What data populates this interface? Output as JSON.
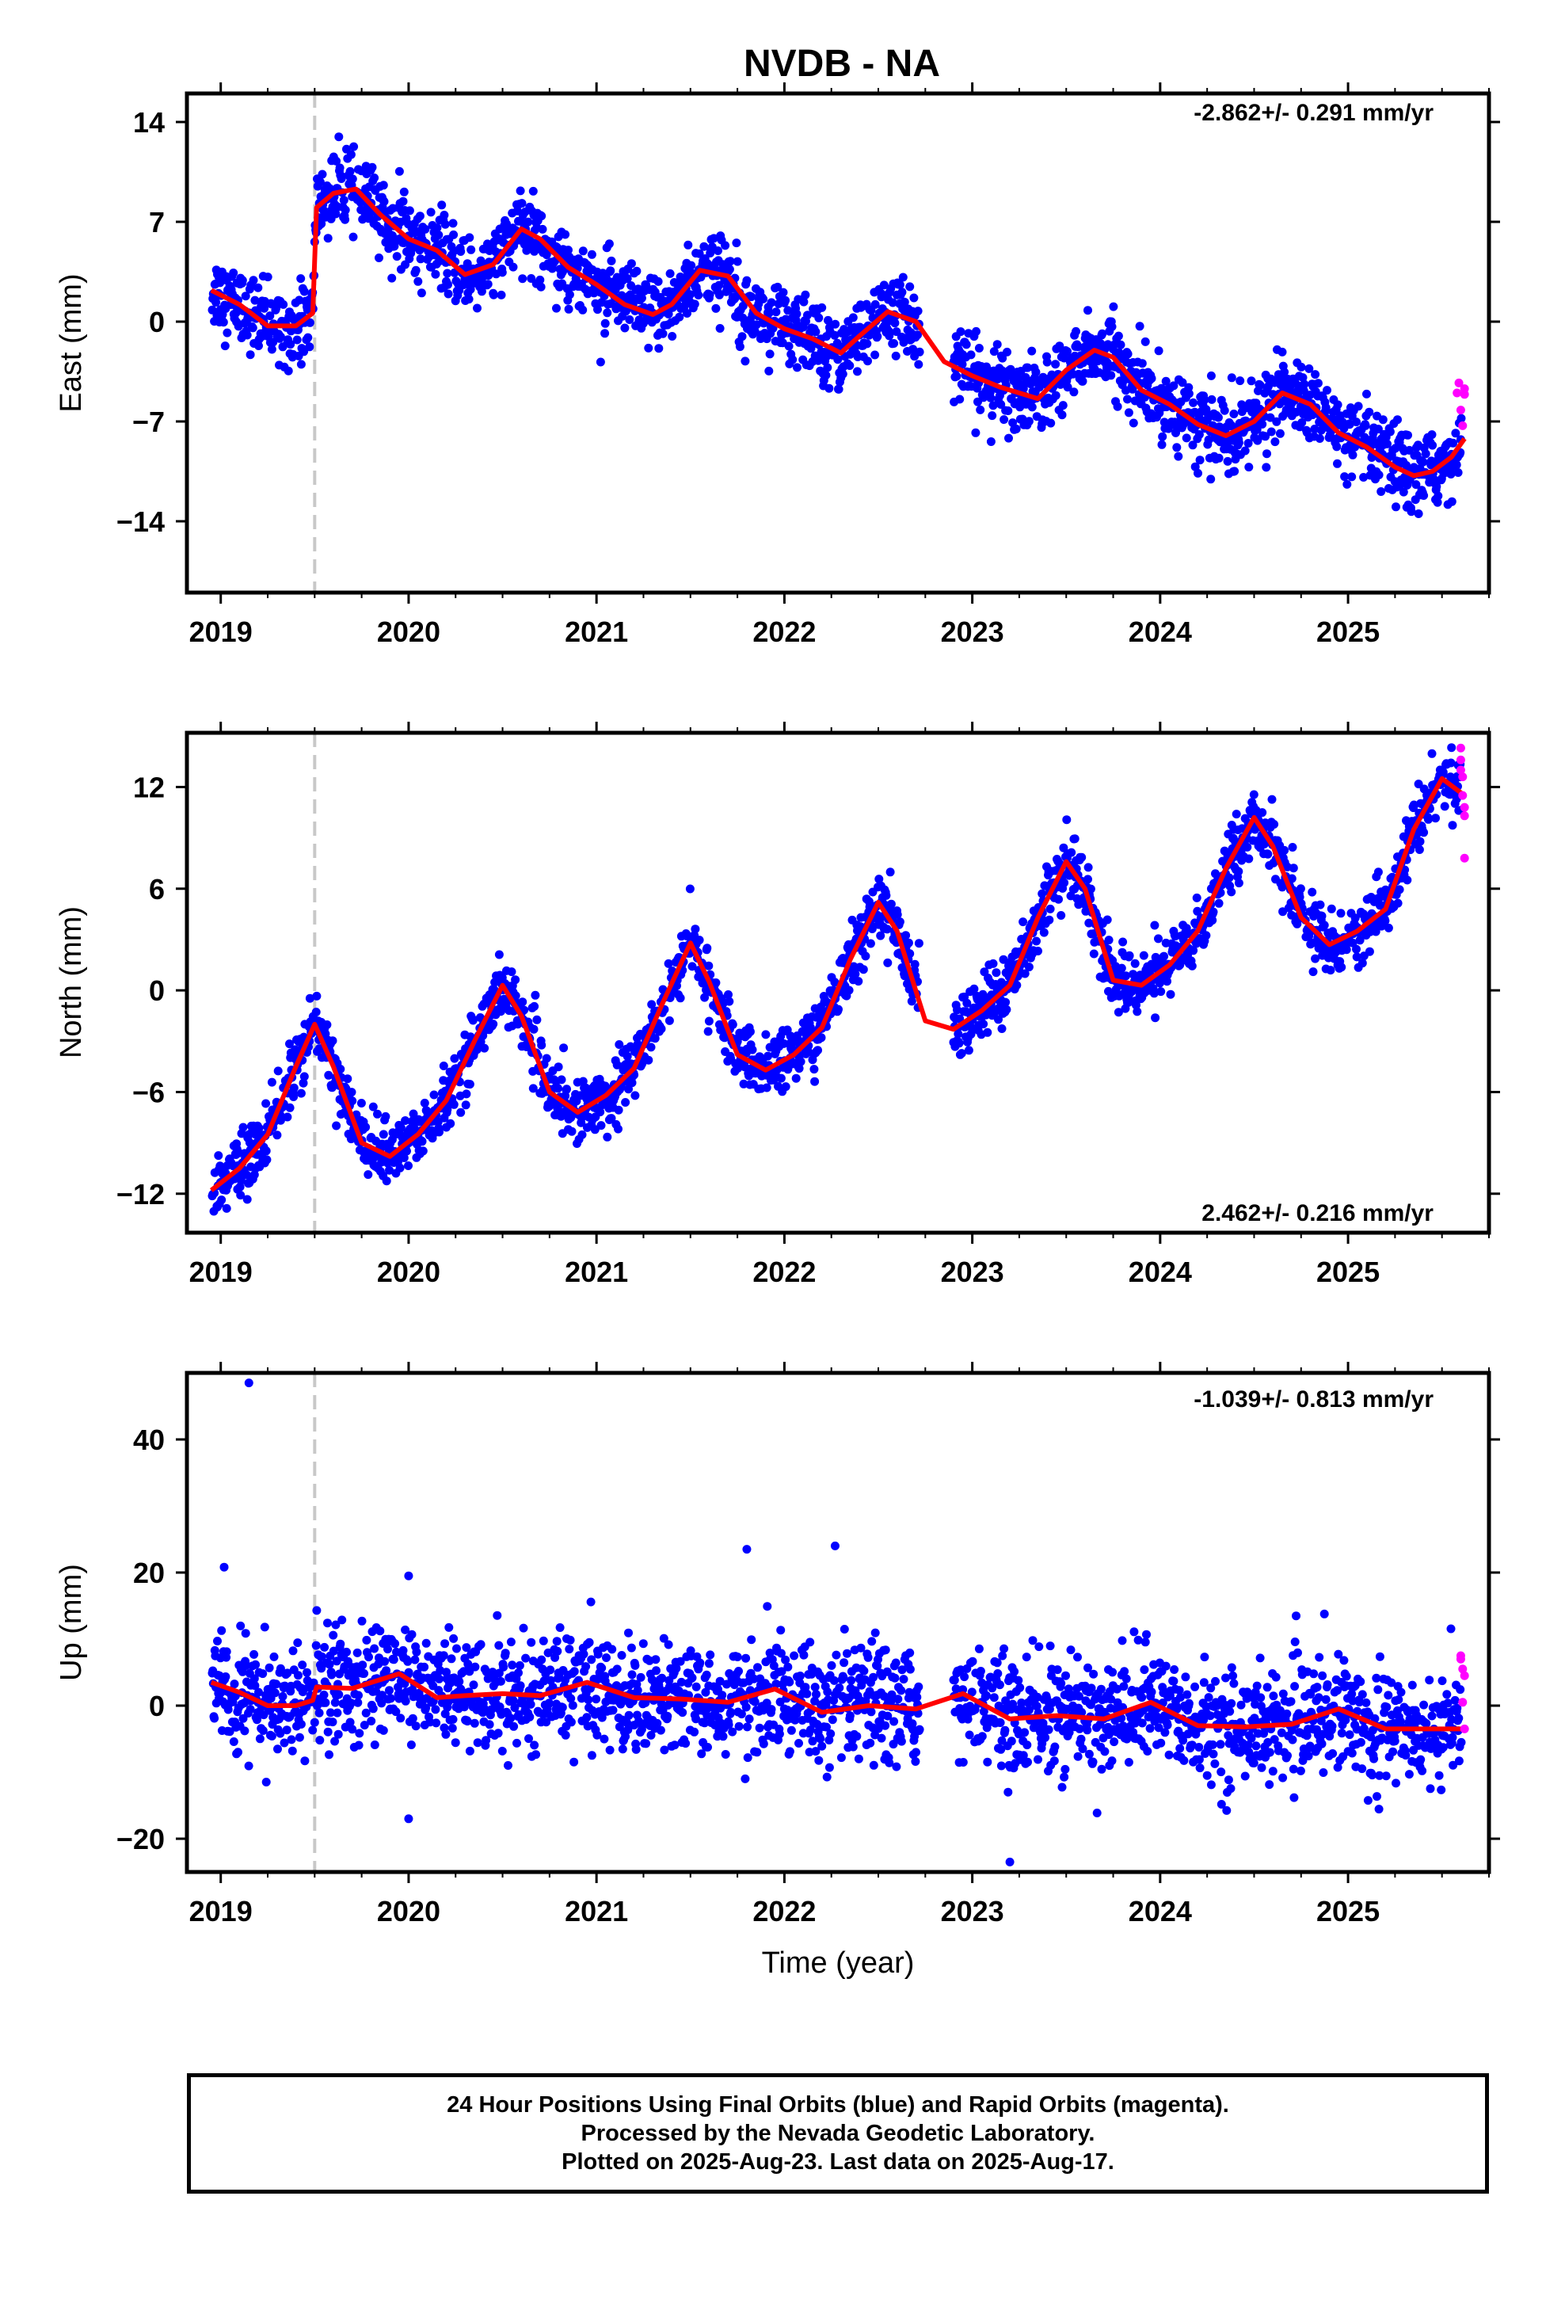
{
  "page_title": "NVDB - NA",
  "xlabel": "Time (year)",
  "caption": [
    "24 Hour Positions Using Final Orbits (blue) and Rapid Orbits (magenta).",
    "Processed by the Nevada Geodetic Laboratory.",
    "Plotted on 2025-Aug-23. Last data on 2025-Aug-17."
  ],
  "colors": {
    "final_orbits": "#0000ff",
    "rapid_orbits": "#ff00ff",
    "model_fit": "#ff0000",
    "event_line": "#c8c8c8"
  },
  "chart_data": [
    {
      "type": "scatter",
      "ylabel": "East (mm)",
      "rate_label": "-2.862+/- 0.291 mm/yr",
      "rate_position": "top-right",
      "xlim": [
        2018.82,
        2025.75
      ],
      "ylim": [
        -19,
        16
      ],
      "xticks": [
        2019,
        2020,
        2021,
        2022,
        2023,
        2024,
        2025
      ],
      "yticks": [
        14,
        7,
        0,
        -7,
        -14
      ],
      "event_line_x": 2019.5,
      "fit_x": [
        2018.95,
        2019.1,
        2019.25,
        2019.4,
        2019.49,
        2019.51,
        2019.6,
        2019.72,
        2019.85,
        2020.0,
        2020.15,
        2020.3,
        2020.45,
        2020.6,
        2020.7,
        2020.85,
        2021.0,
        2021.15,
        2021.3,
        2021.4,
        2021.55,
        2021.7,
        2021.85,
        2022.0,
        2022.15,
        2022.3,
        2022.4,
        2022.55,
        2022.7,
        2022.85,
        2023.0,
        2023.15,
        2023.35,
        2023.5,
        2023.65,
        2023.75,
        2023.9,
        2024.05,
        2024.2,
        2024.35,
        2024.5,
        2024.65,
        2024.8,
        2024.95,
        2025.1,
        2025.25,
        2025.35,
        2025.45,
        2025.55,
        2025.62
      ],
      "fit_y": [
        2.2,
        1.2,
        -0.3,
        -0.3,
        0.6,
        8.0,
        9.0,
        9.3,
        7.5,
        5.8,
        5.0,
        3.3,
        4.0,
        6.5,
        5.8,
        3.8,
        2.6,
        1.2,
        0.5,
        1.2,
        3.6,
        3.2,
        0.6,
        -0.5,
        -1.2,
        -2.2,
        -1.0,
        0.7,
        0.0,
        -2.8,
        -3.8,
        -4.6,
        -5.4,
        -3.4,
        -2.0,
        -2.5,
        -4.8,
        -5.8,
        -7.2,
        -8.0,
        -7.0,
        -5.0,
        -5.8,
        -7.8,
        -8.8,
        -10.2,
        -10.8,
        -10.5,
        -9.5,
        -8.2
      ],
      "rapid_x": [
        2025.58,
        2025.59,
        2025.6,
        2025.61,
        2025.62,
        2025.62
      ],
      "rapid_y": [
        -5.0,
        -4.3,
        -6.2,
        -7.3,
        -5.1,
        -4.7
      ],
      "noise": 1.3
    },
    {
      "type": "scatter",
      "ylabel": "North (mm)",
      "rate_label": "2.462+/- 0.216 mm/yr",
      "rate_position": "bottom-right",
      "xlim": [
        2018.82,
        2025.75
      ],
      "ylim": [
        -14.3,
        15.2
      ],
      "xticks": [
        2019,
        2020,
        2021,
        2022,
        2023,
        2024,
        2025
      ],
      "yticks": [
        12,
        6,
        0,
        -6,
        -12
      ],
      "event_line_x": 2019.5,
      "fit_x": [
        2018.95,
        2019.1,
        2019.25,
        2019.4,
        2019.5,
        2019.6,
        2019.75,
        2019.9,
        2020.05,
        2020.2,
        2020.35,
        2020.5,
        2020.6,
        2020.75,
        2020.9,
        2021.05,
        2021.2,
        2021.35,
        2021.5,
        2021.6,
        2021.75,
        2021.9,
        2022.05,
        2022.2,
        2022.35,
        2022.5,
        2022.6,
        2022.75,
        2022.9,
        2023.05,
        2023.2,
        2023.35,
        2023.5,
        2023.6,
        2023.75,
        2023.9,
        2024.05,
        2024.2,
        2024.35,
        2024.5,
        2024.6,
        2024.75,
        2024.9,
        2025.05,
        2025.2,
        2025.35,
        2025.5,
        2025.62
      ],
      "fit_y": [
        -11.8,
        -10.5,
        -8.5,
        -4.5,
        -2.0,
        -4.5,
        -9.0,
        -9.8,
        -8.5,
        -6.5,
        -3.0,
        0.3,
        -1.5,
        -6.0,
        -7.2,
        -6.2,
        -4.6,
        -0.8,
        2.8,
        0.5,
        -3.8,
        -4.7,
        -3.8,
        -2.2,
        1.8,
        5.2,
        3.5,
        -1.8,
        -2.3,
        -1.2,
        0.3,
        4.3,
        7.6,
        6.0,
        0.6,
        0.3,
        1.5,
        3.5,
        7.2,
        10.2,
        8.5,
        4.3,
        2.7,
        3.5,
        4.8,
        9.5,
        12.5,
        11.5
      ],
      "rapid_x": [
        2025.6,
        2025.6,
        2025.61,
        2025.61,
        2025.62,
        2025.62,
        2025.62,
        2025.6
      ],
      "rapid_y": [
        14.3,
        13.6,
        12.6,
        11.5,
        10.8,
        10.3,
        7.8,
        13.0
      ],
      "noise": 0.9
    },
    {
      "type": "scatter",
      "ylabel": "Up (mm)",
      "rate_label": "-1.039+/- 0.813 mm/yr",
      "rate_position": "top-right",
      "xlim": [
        2018.82,
        2025.75
      ],
      "ylim": [
        -25,
        50
      ],
      "xticks": [
        2019,
        2020,
        2021,
        2022,
        2023,
        2024,
        2025
      ],
      "yticks": [
        40,
        20,
        0,
        -20
      ],
      "event_line_x": 2019.5,
      "fit_x": [
        2018.95,
        2019.1,
        2019.25,
        2019.4,
        2019.49,
        2019.51,
        2019.7,
        2019.95,
        2020.15,
        2020.3,
        2020.5,
        2020.7,
        2020.95,
        2021.2,
        2021.45,
        2021.7,
        2021.95,
        2022.2,
        2022.45,
        2022.7,
        2022.95,
        2023.2,
        2023.45,
        2023.7,
        2023.95,
        2024.2,
        2024.45,
        2024.7,
        2024.95,
        2025.2,
        2025.45,
        2025.62
      ],
      "fit_y": [
        3.5,
        2.0,
        0.0,
        0.0,
        0.8,
        2.8,
        2.6,
        4.8,
        1.2,
        1.5,
        1.8,
        1.5,
        3.5,
        1.2,
        1.0,
        0.5,
        2.5,
        -1.0,
        0.0,
        -0.5,
        1.8,
        -2.0,
        -1.5,
        -2.0,
        0.5,
        -3.0,
        -3.2,
        -2.8,
        -0.5,
        -3.5,
        -3.5,
        -3.5
      ],
      "rapid_x": [
        2025.6,
        2025.61,
        2025.62,
        2025.6,
        2025.61,
        2025.62
      ],
      "rapid_y": [
        7.5,
        5.5,
        4.5,
        7.0,
        0.5,
        -3.5
      ],
      "noise": 4.2,
      "outliers_x": [
        2019.15,
        2020.0,
        2020.0,
        2021.8,
        2022.27,
        2023.2
      ],
      "outliers_y": [
        48.5,
        19.5,
        -17.0,
        23.5,
        24.0,
        -23.5
      ]
    }
  ]
}
